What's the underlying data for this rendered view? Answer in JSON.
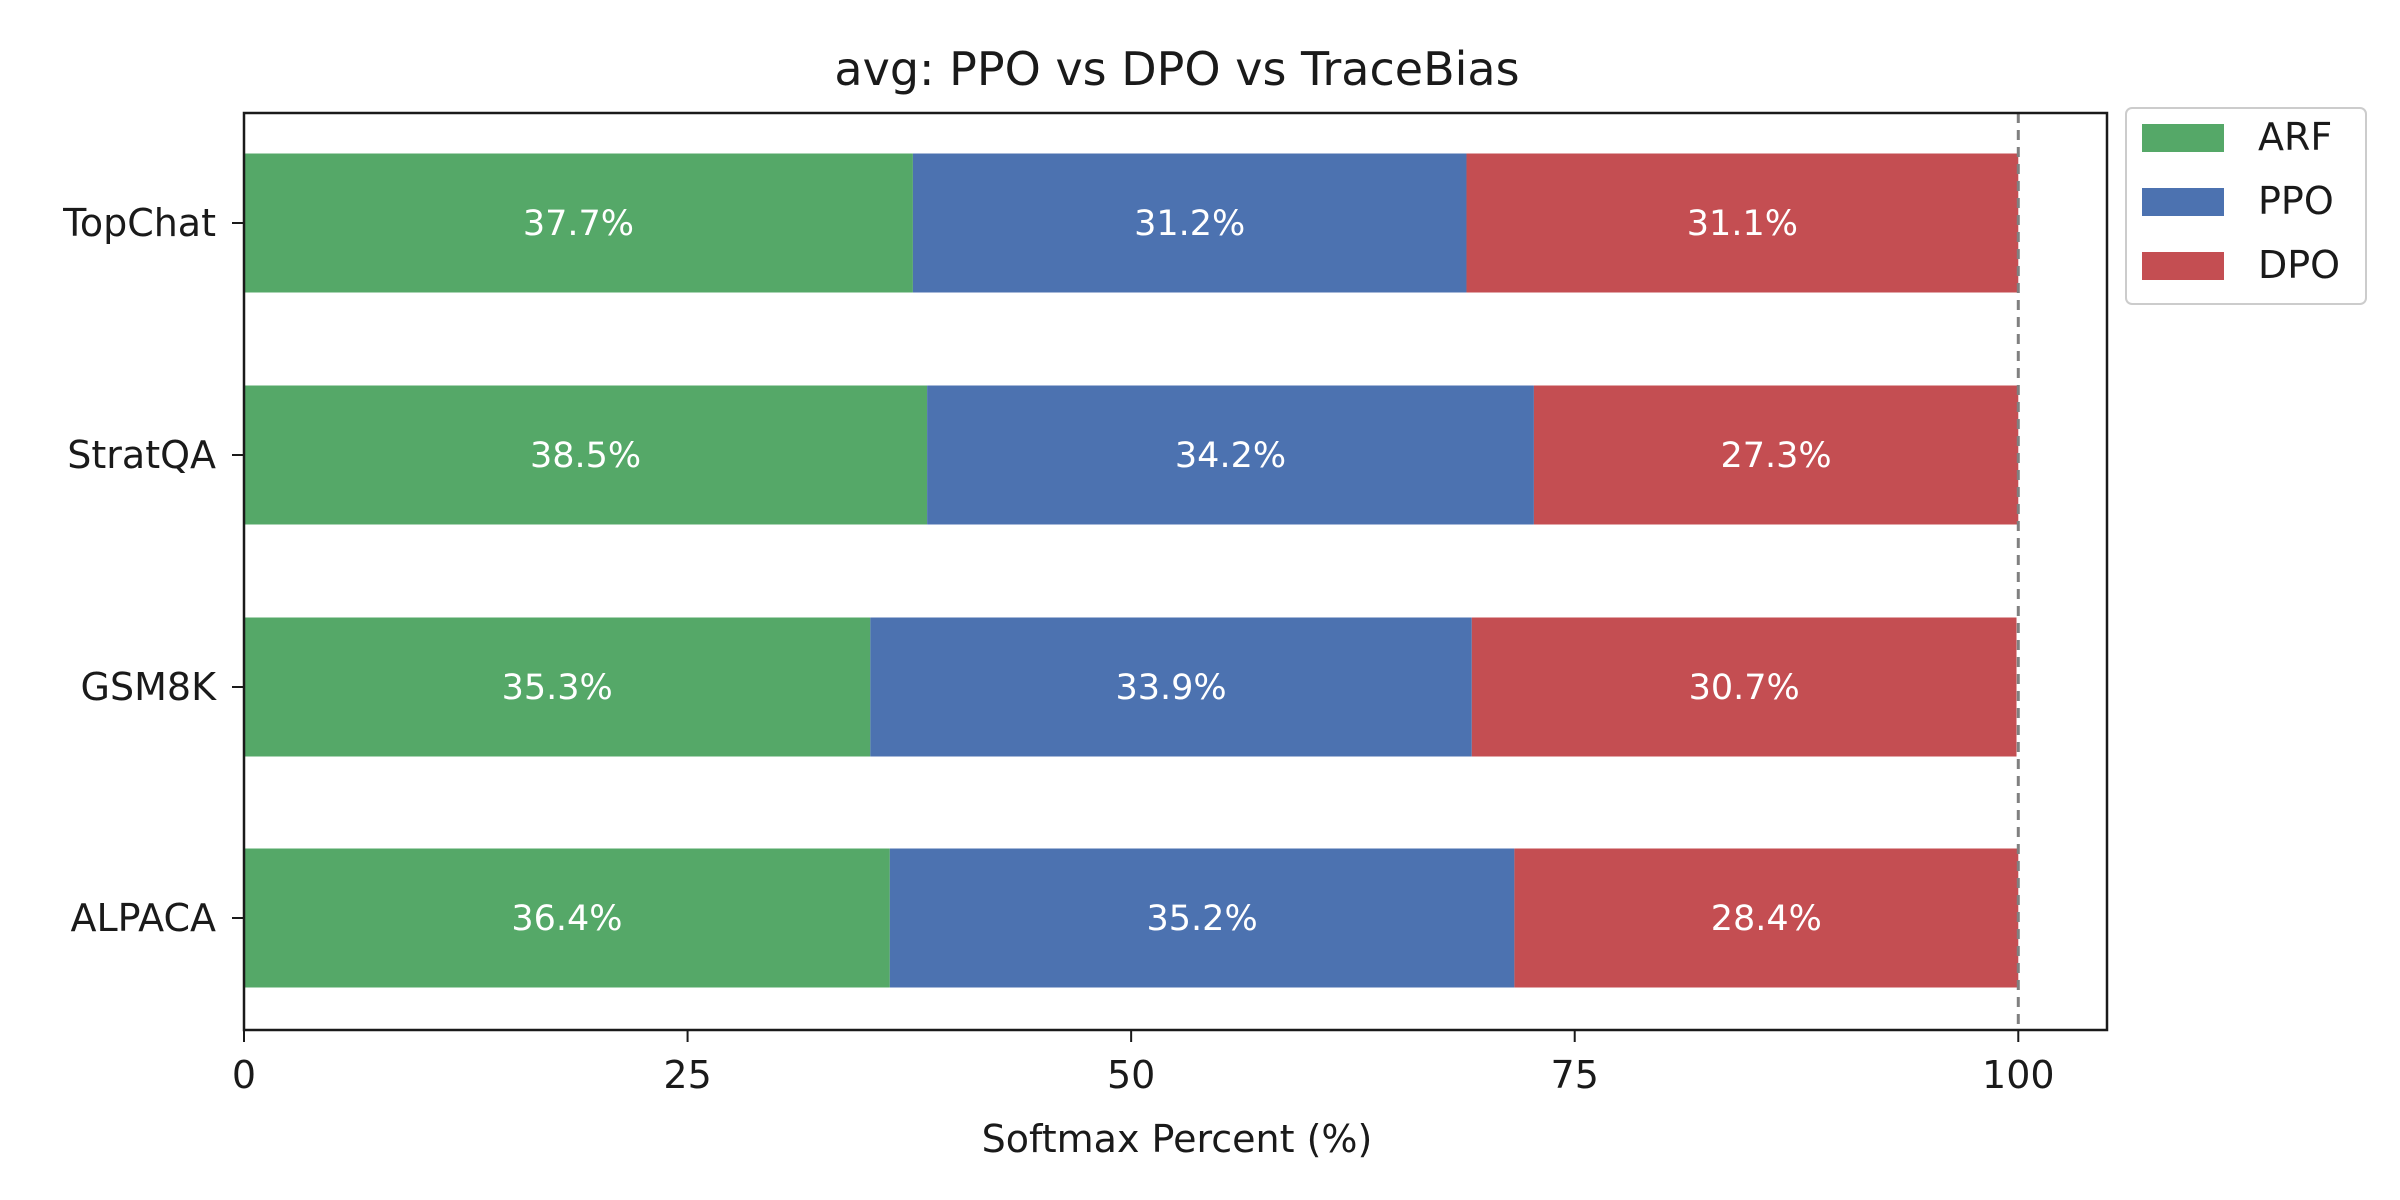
{
  "chart_data": {
    "type": "bar",
    "orientation": "horizontal",
    "stacked": true,
    "title": "avg: PPO vs DPO vs TraceBias",
    "xlabel": "Softmax Percent (%)",
    "ylabel": "",
    "categories": [
      "TopChat",
      "StratQA",
      "GSM8K",
      "ALPACA"
    ],
    "series": [
      {
        "name": "ARF",
        "color": "#55a868",
        "values": [
          37.7,
          38.5,
          35.3,
          36.4
        ],
        "labels": [
          "37.7%",
          "38.5%",
          "35.3%",
          "36.4%"
        ]
      },
      {
        "name": "PPO",
        "color": "#4c72b0",
        "values": [
          31.2,
          34.2,
          33.9,
          35.2
        ],
        "labels": [
          "31.2%",
          "34.2%",
          "33.9%",
          "35.2%"
        ]
      },
      {
        "name": "DPO",
        "color": "#c44e52",
        "values": [
          31.1,
          27.3,
          30.7,
          28.4
        ],
        "labels": [
          "31.1%",
          "27.3%",
          "30.7%",
          "28.4%"
        ]
      }
    ],
    "xlim": [
      0,
      105
    ],
    "xticks": [
      0,
      25,
      50,
      75,
      100
    ],
    "xtick_labels": [
      "0",
      "25",
      "50",
      "75",
      "100"
    ],
    "reference_line": {
      "x": 100,
      "style": "dashed",
      "color": "#808080"
    },
    "grid": false,
    "legend": {
      "position": "outside-top-right",
      "entries": [
        "ARF",
        "PPO",
        "DPO"
      ]
    }
  }
}
